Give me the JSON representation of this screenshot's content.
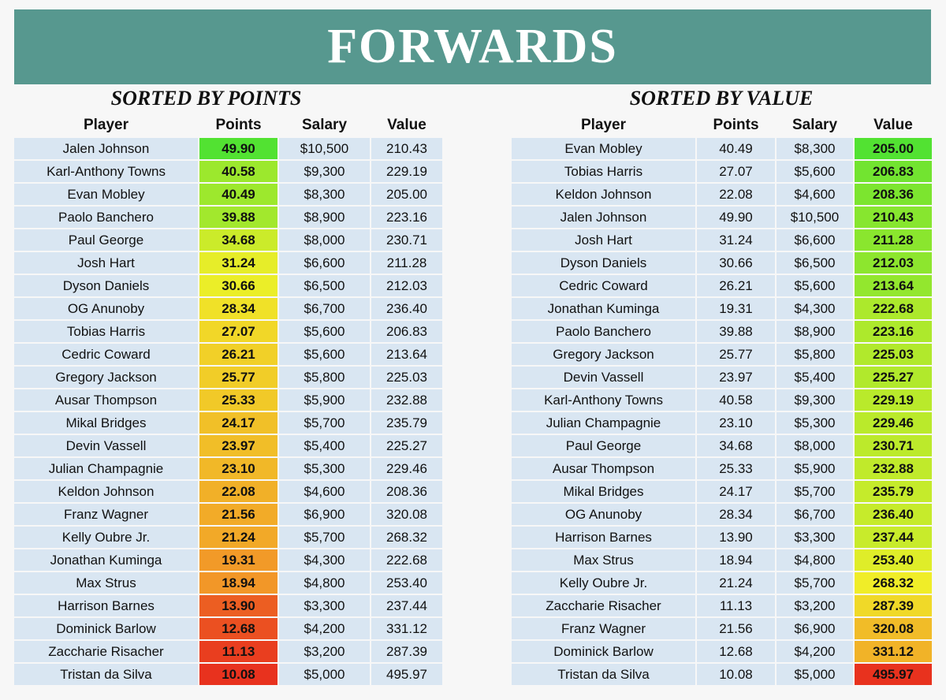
{
  "title": "FORWARDS",
  "left": {
    "subtitle": "SORTED BY POINTS",
    "highlight": "points",
    "range": [
      10.08,
      49.9
    ],
    "headers": [
      "Player",
      "Points",
      "Salary",
      "Value"
    ],
    "rows": [
      [
        "Jalen Johnson",
        "49.90",
        "$10,500",
        "210.43"
      ],
      [
        "Karl-Anthony Towns",
        "40.58",
        "$9,300",
        "229.19"
      ],
      [
        "Evan Mobley",
        "40.49",
        "$8,300",
        "205.00"
      ],
      [
        "Paolo Banchero",
        "39.88",
        "$8,900",
        "223.16"
      ],
      [
        "Paul George",
        "34.68",
        "$8,000",
        "230.71"
      ],
      [
        "Josh Hart",
        "31.24",
        "$6,600",
        "211.28"
      ],
      [
        "Dyson Daniels",
        "30.66",
        "$6,500",
        "212.03"
      ],
      [
        "OG Anunoby",
        "28.34",
        "$6,700",
        "236.40"
      ],
      [
        "Tobias Harris",
        "27.07",
        "$5,600",
        "206.83"
      ],
      [
        "Cedric Coward",
        "26.21",
        "$5,600",
        "213.64"
      ],
      [
        "Gregory Jackson",
        "25.77",
        "$5,800",
        "225.03"
      ],
      [
        "Ausar Thompson",
        "25.33",
        "$5,900",
        "232.88"
      ],
      [
        "Mikal Bridges",
        "24.17",
        "$5,700",
        "235.79"
      ],
      [
        "Devin Vassell",
        "23.97",
        "$5,400",
        "225.27"
      ],
      [
        "Julian Champagnie",
        "23.10",
        "$5,300",
        "229.46"
      ],
      [
        "Keldon Johnson",
        "22.08",
        "$4,600",
        "208.36"
      ],
      [
        "Franz Wagner",
        "21.56",
        "$6,900",
        "320.08"
      ],
      [
        "Kelly Oubre Jr.",
        "21.24",
        "$5,700",
        "268.32"
      ],
      [
        "Jonathan Kuminga",
        "19.31",
        "$4,300",
        "222.68"
      ],
      [
        "Max Strus",
        "18.94",
        "$4,800",
        "253.40"
      ],
      [
        "Harrison Barnes",
        "13.90",
        "$3,300",
        "237.44"
      ],
      [
        "Dominick Barlow",
        "12.68",
        "$4,200",
        "331.12"
      ],
      [
        "Zaccharie Risacher",
        "11.13",
        "$3,200",
        "287.39"
      ],
      [
        "Tristan da Silva",
        "10.08",
        "$5,000",
        "495.97"
      ]
    ]
  },
  "right": {
    "subtitle": "SORTED BY VALUE",
    "highlight": "value",
    "range": [
      205.0,
      495.97
    ],
    "headers": [
      "Player",
      "Points",
      "Salary",
      "Value"
    ],
    "rows": [
      [
        "Evan Mobley",
        "40.49",
        "$8,300",
        "205.00"
      ],
      [
        "Tobias Harris",
        "27.07",
        "$5,600",
        "206.83"
      ],
      [
        "Keldon Johnson",
        "22.08",
        "$4,600",
        "208.36"
      ],
      [
        "Jalen Johnson",
        "49.90",
        "$10,500",
        "210.43"
      ],
      [
        "Josh Hart",
        "31.24",
        "$6,600",
        "211.28"
      ],
      [
        "Dyson Daniels",
        "30.66",
        "$6,500",
        "212.03"
      ],
      [
        "Cedric Coward",
        "26.21",
        "$5,600",
        "213.64"
      ],
      [
        "Jonathan Kuminga",
        "19.31",
        "$4,300",
        "222.68"
      ],
      [
        "Paolo Banchero",
        "39.88",
        "$8,900",
        "223.16"
      ],
      [
        "Gregory Jackson",
        "25.77",
        "$5,800",
        "225.03"
      ],
      [
        "Devin Vassell",
        "23.97",
        "$5,400",
        "225.27"
      ],
      [
        "Karl-Anthony Towns",
        "40.58",
        "$9,300",
        "229.19"
      ],
      [
        "Julian Champagnie",
        "23.10",
        "$5,300",
        "229.46"
      ],
      [
        "Paul George",
        "34.68",
        "$8,000",
        "230.71"
      ],
      [
        "Ausar Thompson",
        "25.33",
        "$5,900",
        "232.88"
      ],
      [
        "Mikal Bridges",
        "24.17",
        "$5,700",
        "235.79"
      ],
      [
        "OG Anunoby",
        "28.34",
        "$6,700",
        "236.40"
      ],
      [
        "Harrison Barnes",
        "13.90",
        "$3,300",
        "237.44"
      ],
      [
        "Max Strus",
        "18.94",
        "$4,800",
        "253.40"
      ],
      [
        "Kelly Oubre Jr.",
        "21.24",
        "$5,700",
        "268.32"
      ],
      [
        "Zaccharie Risacher",
        "11.13",
        "$3,200",
        "287.39"
      ],
      [
        "Franz Wagner",
        "21.56",
        "$6,900",
        "320.08"
      ],
      [
        "Dominick Barlow",
        "12.68",
        "$4,200",
        "331.12"
      ],
      [
        "Tristan da Silva",
        "10.08",
        "$5,000",
        "495.97"
      ]
    ]
  }
}
